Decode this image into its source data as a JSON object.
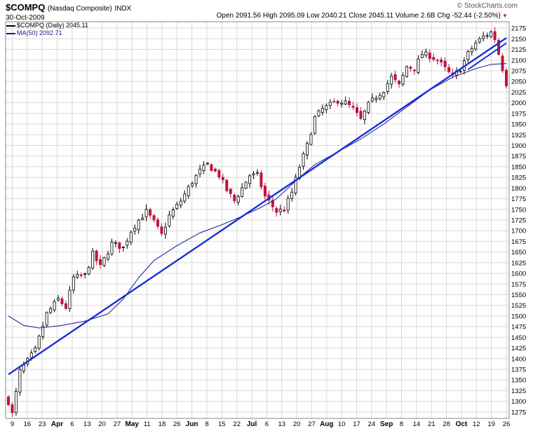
{
  "header": {
    "symbol": "$COMPQ",
    "name": "(Nasdaq Composite)",
    "exchange": "INDX",
    "date": "30-Oct-2009",
    "stats": [
      {
        "label": "Open",
        "value": "2091.56"
      },
      {
        "label": "High",
        "value": "2095.09"
      },
      {
        "label": "Low",
        "value": "2040.21"
      },
      {
        "label": "Close",
        "value": "2045.11"
      },
      {
        "label": "Volume",
        "value": "2.6B"
      },
      {
        "label": "Chg",
        "value": "-52.44 (-2.50%)"
      }
    ],
    "change_arrow": "down-triangle-icon",
    "brand": "© StockCharts.com"
  },
  "legend": [
    {
      "text": "$COMPQ (Daily) 2045.11",
      "color": "#000000"
    },
    {
      "text": "MA(50) 2092.71",
      "color": "#1a1a8c"
    }
  ],
  "colors": {
    "up": "#000000",
    "down": "#c0143c",
    "ma": "#2a2a9c",
    "trend": "#1a2fd6",
    "grid": "#d9d9d9"
  },
  "chart_data": {
    "type": "candlestick",
    "x_tick_labels": [
      "9",
      "16",
      "23",
      "Apr",
      "6",
      "13",
      "20",
      "27",
      "May",
      "11",
      "18",
      "26",
      "Jun",
      "8",
      "15",
      "22",
      "Jul",
      "6",
      "13",
      "20",
      "27",
      "Aug",
      "10",
      "17",
      "24",
      "Sep",
      "8",
      "14",
      "21",
      "28",
      "Oct",
      "12",
      "19",
      "26"
    ],
    "ylim": [
      1260,
      2190
    ],
    "y_ticks": [
      1275,
      1300,
      1325,
      1350,
      1375,
      1400,
      1425,
      1450,
      1475,
      1500,
      1525,
      1550,
      1575,
      1600,
      1625,
      1650,
      1675,
      1700,
      1725,
      1750,
      1775,
      1800,
      1825,
      1850,
      1875,
      1900,
      1925,
      1950,
      1975,
      2000,
      2025,
      2050,
      2075,
      2100,
      2125,
      2150,
      2175
    ],
    "anchors": [
      [
        0,
        1299
      ],
      [
        1,
        1270
      ],
      [
        3,
        1370
      ],
      [
        5,
        1395
      ],
      [
        7,
        1420
      ],
      [
        10,
        1505
      ],
      [
        13,
        1540
      ],
      [
        15,
        1520
      ],
      [
        17,
        1590
      ],
      [
        20,
        1595
      ],
      [
        22,
        1645
      ],
      [
        24,
        1615
      ],
      [
        27,
        1670
      ],
      [
        30,
        1660
      ],
      [
        32,
        1700
      ],
      [
        34,
        1725
      ],
      [
        36,
        1745
      ],
      [
        38,
        1720
      ],
      [
        40,
        1690
      ],
      [
        42,
        1735
      ],
      [
        45,
        1770
      ],
      [
        48,
        1815
      ],
      [
        50,
        1840
      ],
      [
        52,
        1855
      ],
      [
        55,
        1830
      ],
      [
        57,
        1795
      ],
      [
        59,
        1770
      ],
      [
        61,
        1800
      ],
      [
        63,
        1830
      ],
      [
        65,
        1830
      ],
      [
        67,
        1780
      ],
      [
        70,
        1745
      ],
      [
        72,
        1750
      ],
      [
        74,
        1790
      ],
      [
        76,
        1850
      ],
      [
        78,
        1900
      ],
      [
        80,
        1965
      ],
      [
        82,
        1985
      ],
      [
        84,
        1995
      ],
      [
        86,
        2005
      ],
      [
        88,
        2000
      ],
      [
        90,
        1985
      ],
      [
        92,
        1960
      ],
      [
        94,
        1995
      ],
      [
        96,
        2015
      ],
      [
        98,
        2030
      ],
      [
        100,
        2060
      ],
      [
        102,
        2040
      ],
      [
        104,
        2085
      ],
      [
        106,
        2080
      ],
      [
        108,
        2115
      ],
      [
        110,
        2110
      ],
      [
        112,
        2100
      ],
      [
        114,
        2080
      ],
      [
        116,
        2060
      ],
      [
        118,
        2080
      ],
      [
        120,
        2115
      ],
      [
        122,
        2140
      ],
      [
        124,
        2155
      ],
      [
        126,
        2165
      ],
      [
        127,
        2150
      ],
      [
        128,
        2115
      ],
      [
        129,
        2080
      ],
      [
        130,
        2045
      ]
    ],
    "ma50": {
      "name": "MA(50)",
      "points": [
        [
          0,
          1500
        ],
        [
          4,
          1478
        ],
        [
          8,
          1472
        ],
        [
          14,
          1478
        ],
        [
          20,
          1488
        ],
        [
          26,
          1505
        ],
        [
          30,
          1540
        ],
        [
          34,
          1590
        ],
        [
          38,
          1630
        ],
        [
          44,
          1665
        ],
        [
          50,
          1695
        ],
        [
          56,
          1715
        ],
        [
          60,
          1730
        ],
        [
          66,
          1755
        ],
        [
          70,
          1775
        ],
        [
          76,
          1825
        ],
        [
          80,
          1855
        ],
        [
          86,
          1885
        ],
        [
          92,
          1915
        ],
        [
          98,
          1950
        ],
        [
          104,
          1990
        ],
        [
          110,
          2030
        ],
        [
          116,
          2060
        ],
        [
          122,
          2080
        ],
        [
          126,
          2090
        ],
        [
          130,
          2092
        ]
      ]
    },
    "trendline": {
      "from": [
        0,
        1363
      ],
      "to": [
        130,
        2152
      ]
    },
    "resistance_line": {
      "from": [
        120,
        2078
      ],
      "to": [
        130,
        2140
      ]
    }
  }
}
